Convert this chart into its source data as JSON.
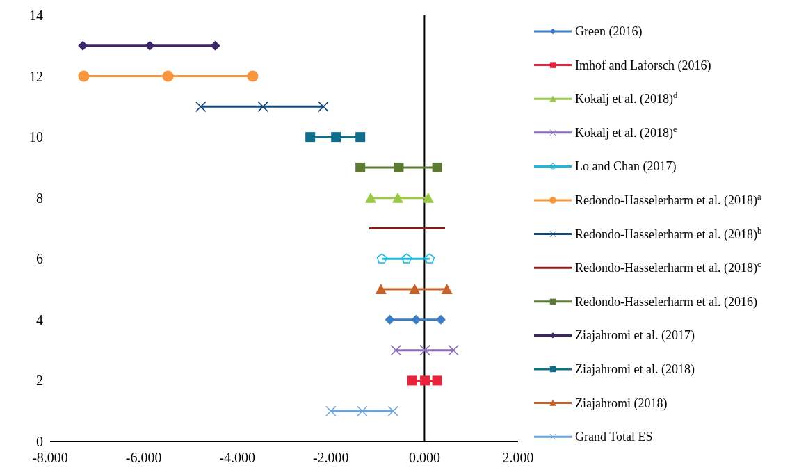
{
  "chart_data": {
    "type": "line",
    "xlim": [
      -8,
      2
    ],
    "ylim": [
      0,
      14
    ],
    "xticks": [
      {
        "value": -8,
        "label": "-8.000"
      },
      {
        "value": -6,
        "label": "-6.000"
      },
      {
        "value": -4,
        "label": "-4.000"
      },
      {
        "value": -2,
        "label": "-2.000"
      },
      {
        "value": 0,
        "label": "0.000"
      },
      {
        "value": 2,
        "label": "2.000"
      }
    ],
    "yticks": [
      0,
      2,
      4,
      6,
      8,
      10,
      12,
      14
    ],
    "grid": false,
    "ref_lines": [
      {
        "axis": "x",
        "value": 0,
        "color": "#000000"
      }
    ],
    "legend": "right",
    "line_style": "solid",
    "series": [
      {
        "name": "Green (2016)",
        "color": "#3a7dc4",
        "marker": "diamond",
        "x": [
          -0.74,
          -0.18,
          0.35
        ],
        "values": [
          4,
          4,
          4
        ]
      },
      {
        "name": "Imhof and Laforsch (2016)",
        "color": "#e8243c",
        "marker": "square",
        "x": [
          -0.26,
          0.01,
          0.27
        ],
        "values": [
          2,
          2,
          2
        ]
      },
      {
        "name": "Kokalj et al. (2018)$^{d}$",
        "color": "#9cc84a",
        "marker": "triangle",
        "x": [
          -1.15,
          -0.57,
          0.08
        ],
        "values": [
          8,
          8,
          8
        ]
      },
      {
        "name": "Kokalj et al. (2018)$^{e}$",
        "color": "#8a6bb8",
        "marker": "cross",
        "x": [
          -0.61,
          0.01,
          0.62
        ],
        "values": [
          3,
          3,
          3
        ]
      },
      {
        "name": "Lo and Chan (2017)",
        "color": "#1cb8e0",
        "marker": "star",
        "x": [
          -0.91,
          -0.38,
          0.11
        ],
        "values": [
          6,
          6,
          6
        ]
      },
      {
        "name": "Redondo-Hasselerharm et al. (2018)$^{a}$",
        "color": "#f7963e",
        "marker": "circle",
        "x": [
          -7.28,
          -5.48,
          -3.67
        ],
        "values": [
          12,
          12,
          12
        ]
      },
      {
        "name": "Redondo-Hasselerharm et al. (2018)$^{b}$",
        "color": "#12487a",
        "marker": "cross",
        "x": [
          -4.78,
          -3.45,
          -2.16
        ],
        "values": [
          11,
          11,
          11
        ]
      },
      {
        "name": "Redondo-Hasselerharm et al. (2018)$^{c}$",
        "color": "#8b1a1a",
        "marker": "none",
        "x": [
          -1.18,
          -0.38,
          0.44
        ],
        "values": [
          7,
          7,
          7
        ]
      },
      {
        "name": "Redondo-Hasselerharm et al. (2016)",
        "color": "#5c7a34",
        "marker": "square",
        "x": [
          -1.37,
          -0.55,
          0.27
        ],
        "values": [
          9,
          9,
          9
        ]
      },
      {
        "name": "Ziajahromi et al. (2017)",
        "color": "#3e2468",
        "marker": "diamond",
        "x": [
          -7.3,
          -5.87,
          -4.47
        ],
        "values": [
          13,
          13,
          13
        ]
      },
      {
        "name": "Ziajahromi et al. (2018)",
        "color": "#0e6e8c",
        "marker": "square",
        "x": [
          -2.44,
          -1.89,
          -1.37
        ],
        "values": [
          10,
          10,
          10
        ]
      },
      {
        "name": "Ziajahromi (2018)",
        "color": "#c8602a",
        "marker": "triangle",
        "x": [
          -0.93,
          -0.21,
          0.48
        ],
        "values": [
          5,
          5,
          5
        ]
      },
      {
        "name": "Grand Total ES",
        "color": "#6aa2dc",
        "marker": "cross",
        "x": [
          -2.0,
          -1.33,
          -0.67
        ],
        "values": [
          1,
          1,
          1
        ]
      }
    ]
  }
}
